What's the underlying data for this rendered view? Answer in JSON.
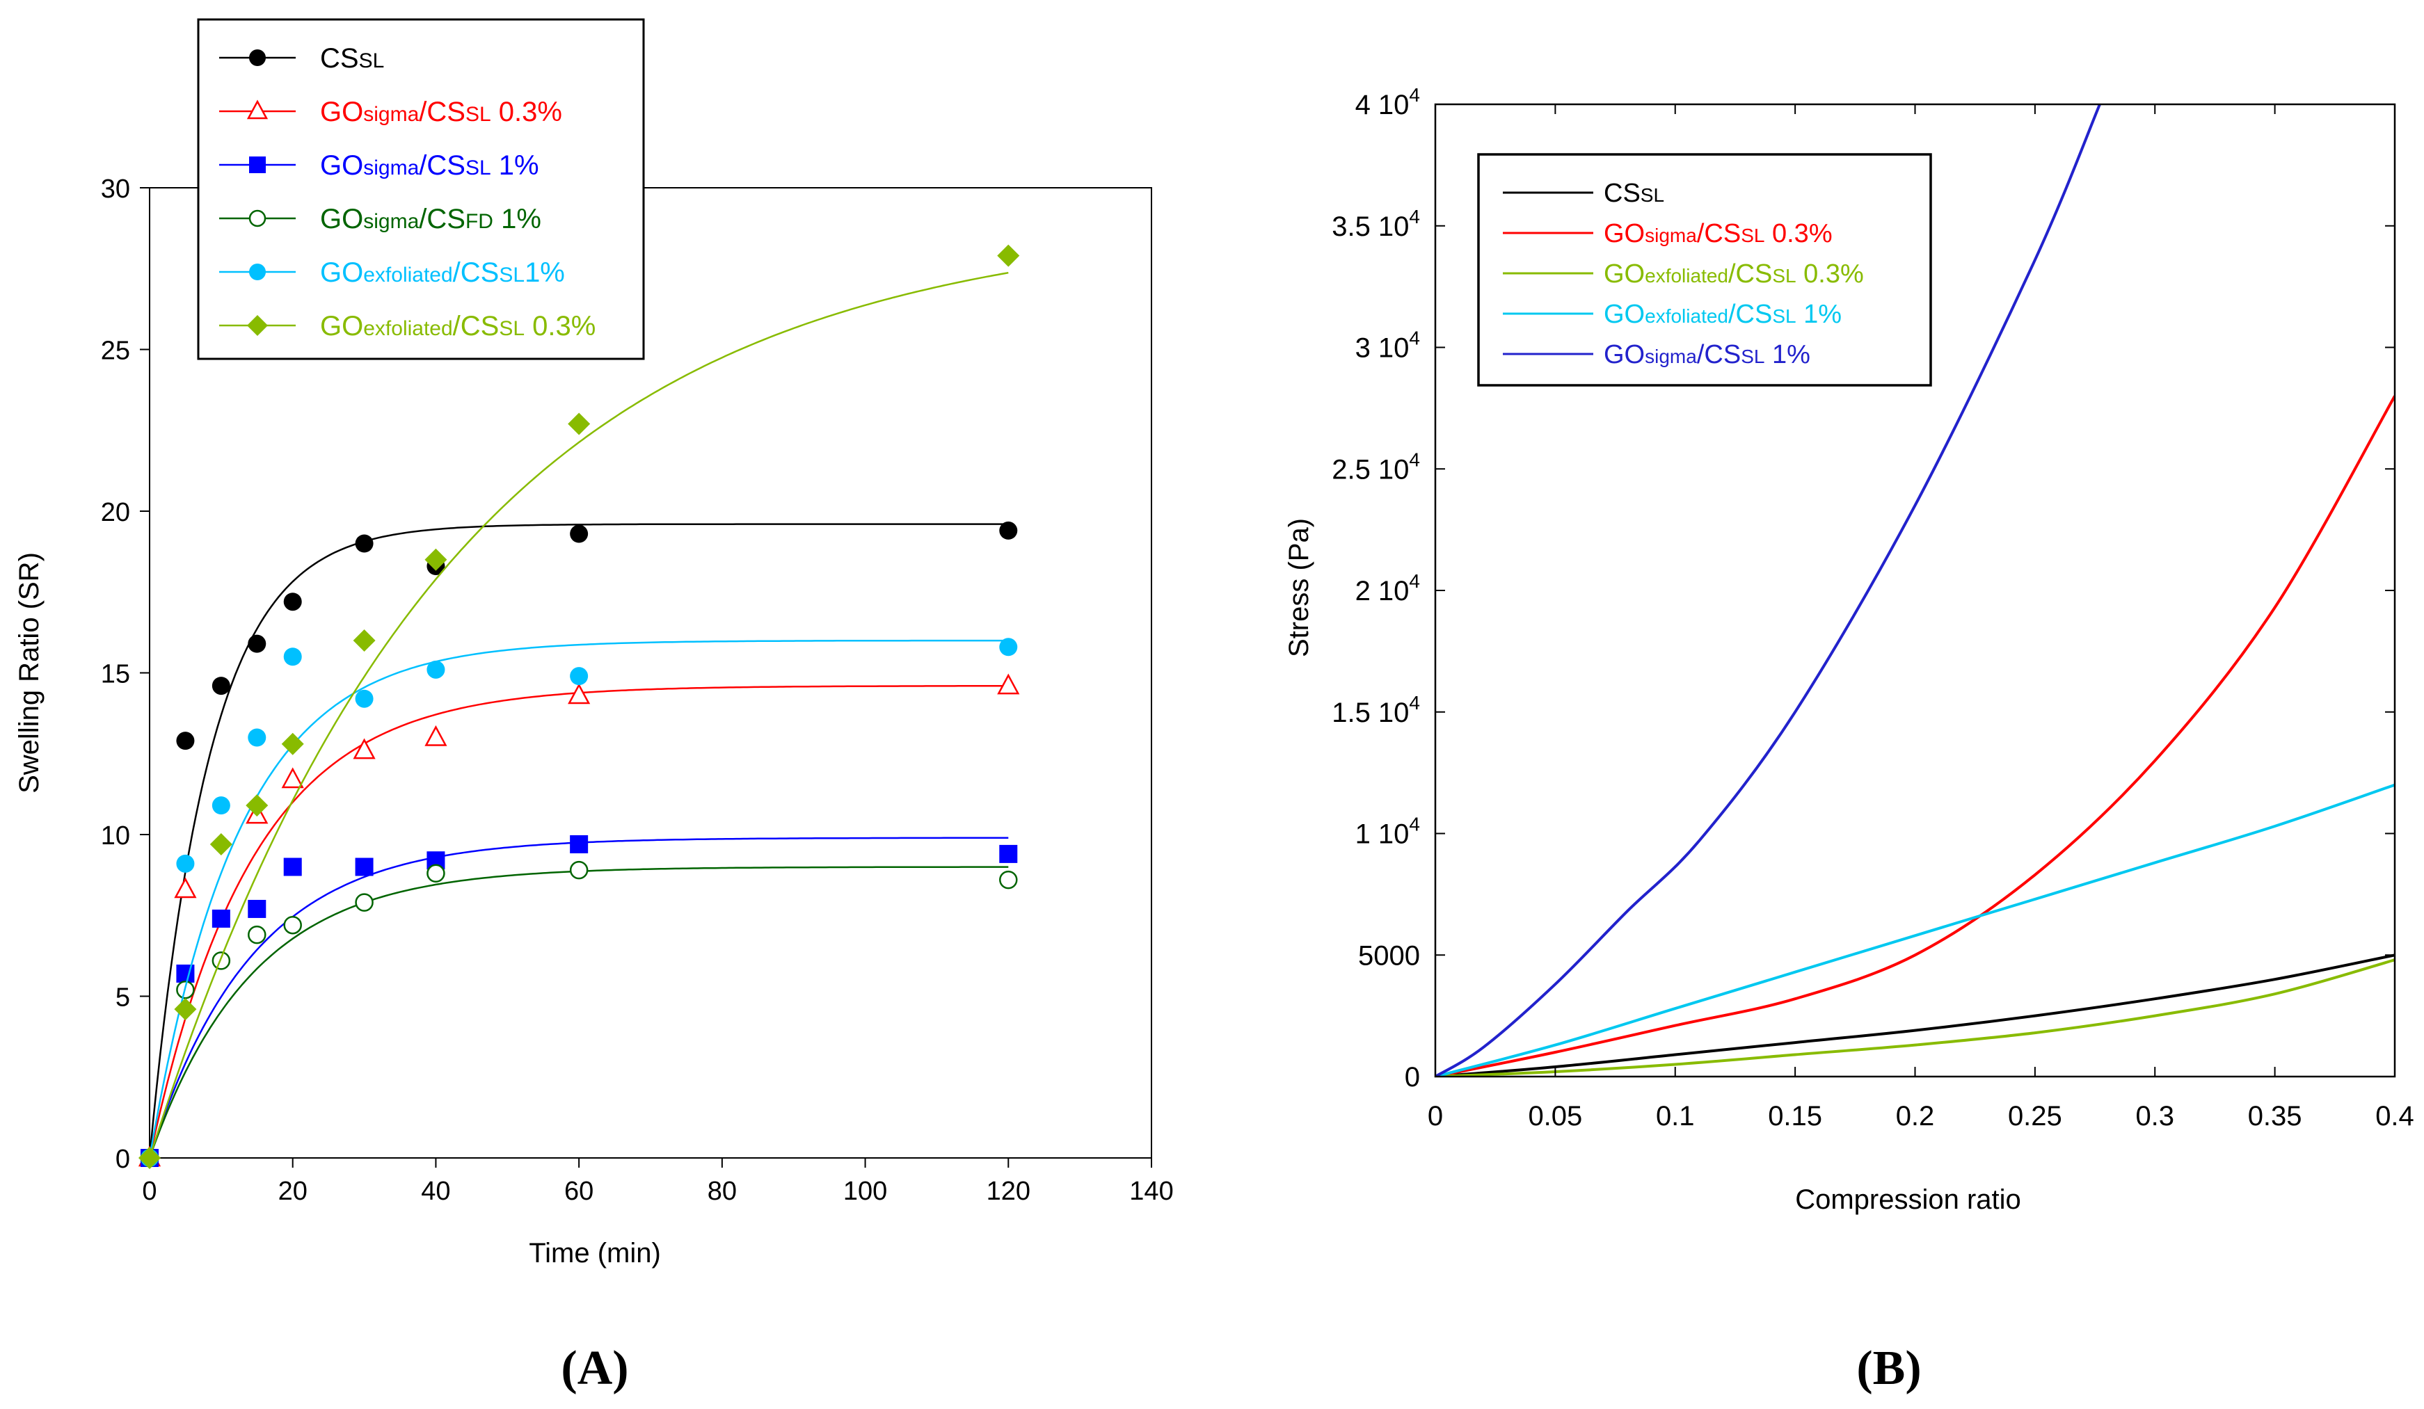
{
  "chart_data": [
    {
      "type": "scatter",
      "panel_label": "A",
      "xlabel": "Time (min)",
      "ylabel": "Swelling Ratio (SR)",
      "xlim": [
        0,
        140
      ],
      "ylim": [
        0,
        30
      ],
      "xticks": [
        0,
        20,
        40,
        60,
        80,
        100,
        120,
        140
      ],
      "yticks": [
        0,
        5,
        10,
        15,
        20,
        25,
        30
      ],
      "legend_position": "top-left",
      "series": [
        {
          "name": "CS",
          "sub": "SL",
          "suffix": "",
          "color": "#000000",
          "marker": "filled-circle",
          "fit_max": 19.6,
          "fit_k": 0.12,
          "x": [
            0,
            5,
            10,
            15,
            20,
            30,
            40,
            60,
            120
          ],
          "y": [
            0,
            12.9,
            14.6,
            15.9,
            17.2,
            19.0,
            18.3,
            19.3,
            19.4
          ]
        },
        {
          "name": "GO",
          "sub": "sigma",
          "name2": "/CS",
          "sub2": "SL",
          "suffix": " 0.3%",
          "color": "#ff0000",
          "marker": "open-triangle",
          "fit_max": 14.6,
          "fit_k": 0.07,
          "x": [
            0,
            5,
            15,
            20,
            30,
            40,
            60,
            120
          ],
          "y": [
            0,
            8.3,
            10.6,
            11.7,
            12.6,
            13.0,
            14.3,
            14.6
          ]
        },
        {
          "name": "GO",
          "sub": "sigma",
          "name2": "/CS",
          "sub2": "SL",
          "suffix": " 1%",
          "color": "#0000ff",
          "marker": "filled-square",
          "fit_max": 9.9,
          "fit_k": 0.07,
          "x": [
            0,
            5,
            10,
            15,
            20,
            30,
            40,
            60,
            120
          ],
          "y": [
            0,
            5.7,
            7.4,
            7.7,
            9.0,
            9.0,
            9.2,
            9.7,
            9.4
          ]
        },
        {
          "name": "GO",
          "sub": "sigma",
          "name2": "/CS",
          "sub2": "FD",
          "suffix": " 1%",
          "color": "#006400",
          "marker": "open-circle",
          "fit_max": 9.0,
          "fit_k": 0.07,
          "x": [
            0,
            5,
            10,
            15,
            20,
            30,
            40,
            60,
            120
          ],
          "y": [
            0,
            5.2,
            6.1,
            6.9,
            7.2,
            7.9,
            8.8,
            8.9,
            8.6
          ]
        },
        {
          "name": "GO",
          "sub": "exfoliated",
          "name2": "/CS",
          "sub2": "SL",
          "suffix": "1%",
          "color": "#00c0ff",
          "marker": "filled-circle",
          "fit_max": 16.0,
          "fit_k": 0.08,
          "x": [
            0,
            5,
            10,
            15,
            20,
            30,
            40,
            60,
            120
          ],
          "y": [
            0,
            9.1,
            10.9,
            13.0,
            15.5,
            14.2,
            15.1,
            14.9,
            15.8
          ]
        },
        {
          "name": "GO",
          "sub": "exfoliated",
          "name2": "/CS",
          "sub2": "SL",
          "suffix": " 0.3%",
          "color": "#88bb00",
          "marker": "filled-diamond",
          "fit_max": 29.0,
          "fit_k": 0.024,
          "x": [
            0,
            5,
            10,
            15,
            20,
            30,
            40,
            60,
            120
          ],
          "y": [
            0,
            4.6,
            9.7,
            10.9,
            12.8,
            16.0,
            18.5,
            22.7,
            27.9
          ]
        }
      ]
    },
    {
      "type": "line",
      "panel_label": "B",
      "xlabel": "Compression ratio",
      "ylabel": "Stress (Pa)",
      "xlim": [
        0,
        0.4
      ],
      "ylim": [
        0,
        40000
      ],
      "xticks": [
        0,
        0.05,
        0.1,
        0.15,
        0.2,
        0.25,
        0.3,
        0.35,
        0.4
      ],
      "xtick_labels": [
        "0",
        "0.05",
        "0.1",
        "0.15",
        "0.2",
        "0.25",
        "0.3",
        "0.35",
        "0.4"
      ],
      "yticks": [
        0,
        5000,
        10000,
        15000,
        20000,
        25000,
        30000,
        35000,
        40000
      ],
      "ytick_labels": [
        {
          "mant": "0",
          "exp": ""
        },
        {
          "mant": "5000",
          "exp": ""
        },
        {
          "mant": "1 10",
          "exp": "4"
        },
        {
          "mant": "1.5 10",
          "exp": "4"
        },
        {
          "mant": "2 10",
          "exp": "4"
        },
        {
          "mant": "2.5 10",
          "exp": "4"
        },
        {
          "mant": "3 10",
          "exp": "4"
        },
        {
          "mant": "3.5 10",
          "exp": "4"
        },
        {
          "mant": "4 10",
          "exp": "4"
        }
      ],
      "legend_position": "top-left",
      "series": [
        {
          "name": "CS",
          "sub": "SL",
          "suffix": "",
          "color": "#000000",
          "x": [
            0,
            0.05,
            0.1,
            0.15,
            0.2,
            0.25,
            0.3,
            0.35,
            0.4
          ],
          "y": [
            0,
            400,
            900,
            1400,
            1900,
            2500,
            3200,
            4000,
            5000
          ]
        },
        {
          "name": "GO",
          "sub": "sigma",
          "name2": "/CS",
          "sub2": "SL",
          "suffix": " 0.3%",
          "color": "#ff0000",
          "x": [
            0,
            0.05,
            0.1,
            0.15,
            0.2,
            0.25,
            0.3,
            0.35,
            0.4
          ],
          "y": [
            0,
            1000,
            2100,
            3200,
            5000,
            8300,
            13000,
            19300,
            28000
          ]
        },
        {
          "name": "GO",
          "sub": "exfoliated",
          "name2": "/CS",
          "sub2": "SL",
          "suffix": " 0.3%",
          "color": "#88bb00",
          "x": [
            0,
            0.05,
            0.1,
            0.15,
            0.2,
            0.25,
            0.3,
            0.35,
            0.4
          ],
          "y": [
            0,
            200,
            500,
            900,
            1300,
            1800,
            2500,
            3400,
            4800
          ]
        },
        {
          "name": "GO",
          "sub": "exfoliated",
          "name2": "/CS",
          "sub2": "SL",
          "suffix": " 1%",
          "color": "#00c8f0",
          "x": [
            0,
            0.05,
            0.1,
            0.15,
            0.2,
            0.25,
            0.3,
            0.35,
            0.4
          ],
          "y": [
            0,
            1300,
            2800,
            4300,
            5800,
            7300,
            8800,
            10300,
            12000
          ]
        },
        {
          "name": "GO",
          "sub": "sigma",
          "name2": "/CS",
          "sub2": "SL",
          "suffix": " 1%",
          "color": "#2222cc",
          "x": [
            0,
            0.02,
            0.05,
            0.08,
            0.11,
            0.15,
            0.2,
            0.25,
            0.277
          ],
          "y": [
            0,
            1200,
            3800,
            6800,
            9700,
            15000,
            23500,
            33600,
            40000
          ]
        }
      ]
    }
  ]
}
